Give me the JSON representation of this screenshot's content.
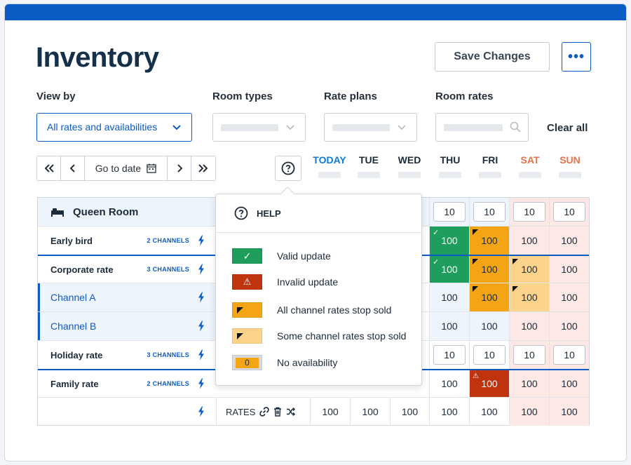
{
  "header": {
    "title": "Inventory",
    "save_label": "Save Changes",
    "more_label": "•••"
  },
  "filters": {
    "view_by_label": "View by",
    "view_by_value": "All rates and availabilities",
    "room_types_label": "Room types",
    "rate_plans_label": "Rate plans",
    "room_rates_label": "Room rates",
    "clear_label": "Clear all"
  },
  "nav": {
    "goto_label": "Go to date"
  },
  "days": [
    "TODAY",
    "TUE",
    "WED",
    "THU",
    "FRI",
    "SAT",
    "SUN"
  ],
  "room": {
    "name": "Queen Room",
    "inventory": [
      "10",
      "10",
      "10",
      "10"
    ]
  },
  "rows": [
    {
      "name": "Early bird",
      "channels": "2 CHANNELS",
      "values": [
        "100",
        "100",
        "100",
        "100"
      ]
    },
    {
      "name": "Corporate rate",
      "channels": "3 CHANNELS",
      "values": [
        "100",
        "100",
        "100",
        "100"
      ]
    },
    {
      "name": "Channel A",
      "values": [
        "100",
        "100",
        "100",
        "100"
      ]
    },
    {
      "name": "Channel B",
      "values": [
        "100",
        "100",
        "100",
        "100"
      ]
    },
    {
      "name": "Holiday rate",
      "channels": "3 CHANNELS",
      "values": [
        "10",
        "10",
        "10",
        "10"
      ]
    },
    {
      "name": "Family rate",
      "channels": "2 CHANNELS",
      "values": [
        "100",
        "100",
        "100",
        "100"
      ]
    },
    {
      "name": "",
      "rates_label": "RATES",
      "values": [
        "100",
        "100",
        "100",
        "100",
        "100",
        "100",
        "100"
      ]
    }
  ],
  "help": {
    "title": "HELP",
    "items": [
      {
        "label": "Valid update",
        "color": "#1f9d5c"
      },
      {
        "label": "Invalid update",
        "color": "#c0330f"
      },
      {
        "label": "All channel rates stop sold",
        "color": "#f4a515"
      },
      {
        "label": "Some channel rates stop sold",
        "color": "#fcd38a"
      },
      {
        "label": "No availability",
        "value": "0",
        "color": "#f4a515"
      }
    ]
  },
  "colors": {
    "accent": "#0b5cc4",
    "weekend_bg": "#fde8e6",
    "weekend_text": "#e8734a",
    "today_text": "#0b7ad8"
  }
}
